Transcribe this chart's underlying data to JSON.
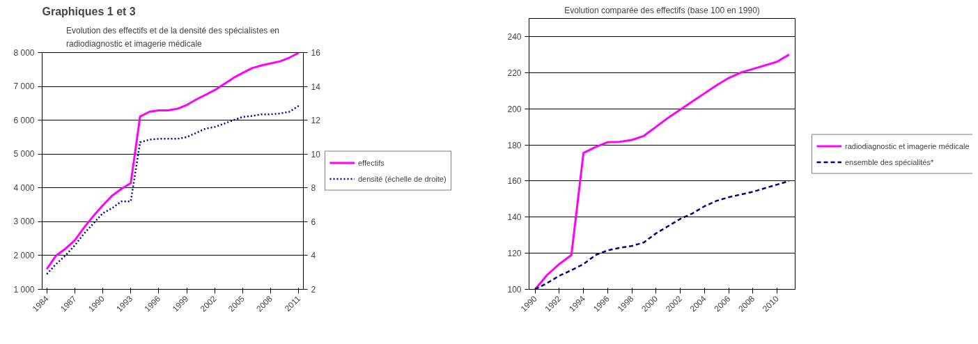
{
  "chart_data": [
    {
      "type": "line",
      "title": "Evolution des effectifs et de la densité des spécialistes en\nradiodiagnostic et imagerie médicale",
      "annotations": [
        "Graphiques 1 et 3"
      ],
      "categories": [
        "1984",
        null,
        null,
        "1987",
        null,
        null,
        "1990",
        null,
        null,
        "1993",
        null,
        null,
        "1996",
        null,
        null,
        "1999",
        null,
        null,
        "2002",
        null,
        null,
        "2005",
        null,
        null,
        "2008",
        null,
        null,
        "2011"
      ],
      "series": [
        {
          "name": "effectifs",
          "color": "#ff00ff",
          "line_style": "solid",
          "values": [
            1600,
            2000,
            2200,
            2450,
            2830,
            3170,
            3480,
            3770,
            3970,
            4140,
            6110,
            6250,
            6290,
            6290,
            6340,
            6450,
            6610,
            6750,
            6890,
            7070,
            7250,
            7400,
            7540,
            7620,
            7680,
            7740,
            7850,
            7990
          ]
        },
        {
          "name": "densité (échelle de droite)",
          "color": "#000080",
          "line_style": "dotted",
          "axis": "y2",
          "values": [
            2.9,
            3.5,
            4.0,
            4.6,
            5.3,
            5.9,
            6.5,
            6.8,
            7.2,
            7.2,
            10.7,
            10.85,
            10.9,
            10.9,
            10.9,
            11.0,
            11.25,
            11.5,
            11.6,
            11.8,
            12.0,
            12.2,
            12.25,
            12.35,
            12.35,
            12.4,
            12.5,
            12.85
          ]
        }
      ],
      "ylim": [
        1000,
        8000
      ],
      "yticks": [
        {
          "value": 1000,
          "label": "1 000"
        },
        {
          "value": 2000,
          "label": "2 000"
        },
        {
          "value": 3000,
          "label": "3 000"
        },
        {
          "value": 4000,
          "label": "4 000"
        },
        {
          "value": 5000,
          "label": "5 000"
        },
        {
          "value": 6000,
          "label": "6 000"
        },
        {
          "value": 7000,
          "label": "7 000"
        },
        {
          "value": 8000,
          "label": "8 000"
        }
      ],
      "y2lim": [
        2,
        16
      ],
      "y2ticks": [
        2,
        4,
        6,
        8,
        10,
        12,
        14,
        16
      ],
      "grid": "y",
      "legend": "right"
    },
    {
      "type": "line",
      "title": "Evolution comparée des effectifs (base 100 en 1990)",
      "categories": [
        "1990",
        null,
        "1992",
        null,
        "1994",
        null,
        "1996",
        null,
        "1998",
        null,
        "2000",
        null,
        "2002",
        null,
        "2004",
        null,
        "2006",
        null,
        "2008",
        null,
        "2010",
        null
      ],
      "series": [
        {
          "name": "radiodiagnostic et imagerie médicale",
          "color": "#ff00ff",
          "line_style": "solid",
          "values": [
            100,
            108,
            114,
            119,
            175.5,
            178.8,
            181.5,
            181.7,
            182.7,
            185,
            190,
            195,
            199.5,
            204,
            208.5,
            213,
            217,
            220,
            222,
            224,
            226,
            230
          ]
        },
        {
          "name": "ensemble des spécialités*",
          "color": "#000080",
          "line_style": "dashed",
          "values": [
            100,
            103.5,
            107.5,
            110.6,
            114,
            119,
            121.6,
            123,
            124,
            126,
            131,
            135,
            139,
            142,
            146,
            149,
            151,
            152.5,
            154,
            156,
            158,
            160
          ]
        }
      ],
      "ylim": [
        100,
        250
      ],
      "yticks": [
        100,
        120,
        140,
        160,
        180,
        200,
        220,
        240
      ],
      "grid": "y",
      "legend": "right"
    }
  ]
}
